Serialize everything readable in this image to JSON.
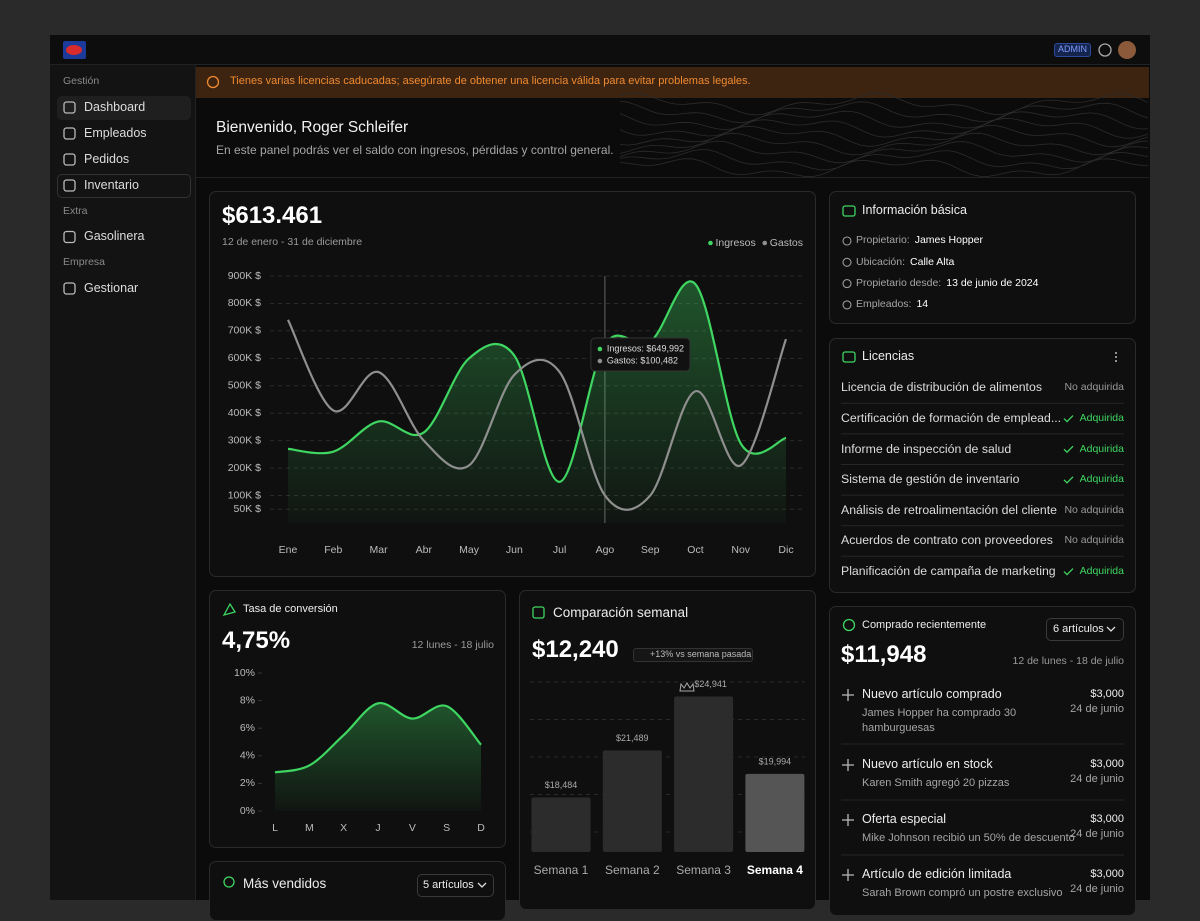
{
  "app": {
    "admin_badge": "ADMIN"
  },
  "sidebar": {
    "sections": [
      {
        "title": "Gestión",
        "items": [
          "Dashboard",
          "Empleados",
          "Pedidos",
          "Inventario"
        ]
      },
      {
        "title": "Extra",
        "items": [
          "Gasolinera"
        ]
      },
      {
        "title": "Empresa",
        "items": [
          "Gestionar"
        ]
      }
    ]
  },
  "banner": "Tienes varias licencias caducadas; asegúrate de obtener una licencia válida para evitar problemas legales.",
  "welcome": {
    "title": "Bienvenido, Roger Schleifer",
    "subtitle": "En este panel podrás ver el saldo con ingresos, pérdidas y control general."
  },
  "chart_data": [
    {
      "type": "line",
      "title": "$613.461",
      "subtitle": "12 de enero - 31 de diciembre",
      "categories": [
        "Ene",
        "Feb",
        "Mar",
        "Abr",
        "May",
        "Jun",
        "Jul",
        "Ago",
        "Sep",
        "Oct",
        "Nov",
        "Dic"
      ],
      "series": [
        {
          "name": "Ingresos",
          "color": "#3fd662",
          "area": true,
          "values": [
            270000,
            260000,
            370000,
            330000,
            600000,
            610000,
            150000,
            649992,
            660000,
            870000,
            290000,
            310000
          ]
        },
        {
          "name": "Gastos",
          "color": "#8f8f8f",
          "values": [
            740000,
            410000,
            550000,
            300000,
            210000,
            540000,
            550000,
            100482,
            100000,
            480000,
            210000,
            670000
          ]
        }
      ],
      "ylim": [
        0,
        900000
      ],
      "yticks": [
        {
          "value": 50000,
          "label": "50K $"
        },
        {
          "value": 100000,
          "label": "100K $"
        },
        {
          "value": 200000,
          "label": "200K $"
        },
        {
          "value": 300000,
          "label": "300K $"
        },
        {
          "value": 400000,
          "label": "400K $"
        },
        {
          "value": 500000,
          "label": "500K $"
        },
        {
          "value": 600000,
          "label": "600K $"
        },
        {
          "value": 700000,
          "label": "700K $"
        },
        {
          "value": 800000,
          "label": "800K $"
        },
        {
          "value": 900000,
          "label": "900K $"
        }
      ],
      "grid": true,
      "legend": "top-right",
      "annotations": [
        "Ingresos: $649,992",
        "Gastos: $100,482"
      ]
    },
    {
      "type": "line",
      "title": "Tasa de conversión",
      "headline": "4,75%",
      "subtitle": "12 lunes - 18 julio",
      "categories": [
        "L",
        "M",
        "X",
        "J",
        "V",
        "S",
        "D"
      ],
      "values": [
        2.8,
        3.3,
        5.5,
        7.8,
        6.7,
        7.6,
        4.8
      ],
      "color": "#3fd662",
      "area": true,
      "ylim": [
        0,
        10
      ],
      "yticks": [
        {
          "value": 0,
          "label": "0%"
        },
        {
          "value": 2,
          "label": "2%"
        },
        {
          "value": 4,
          "label": "4%"
        },
        {
          "value": 6,
          "label": "6%"
        },
        {
          "value": 8,
          "label": "8%"
        },
        {
          "value": 10,
          "label": "10%"
        }
      ],
      "grid": false
    },
    {
      "type": "bar",
      "title": "Comparación semanal",
      "headline": "$12,240",
      "badge": "+13% vs semana pasada",
      "categories": [
        "Semana 1",
        "Semana 2",
        "Semana 3",
        "Semana 4"
      ],
      "values": [
        18484,
        21489,
        24941,
        19994
      ],
      "value_labels": [
        "$18,484",
        "$21,489",
        "$24,941",
        "$19,994"
      ],
      "colors": [
        "#2c2c2c",
        "#2c2c2c",
        "#2c2c2c",
        "#555555"
      ],
      "ylim": [
        15000,
        26000
      ]
    }
  ],
  "info": {
    "title": "Información básica",
    "rows": [
      {
        "label": "Propietario:",
        "value": "James Hopper"
      },
      {
        "label": "Ubicación:",
        "value": "Calle Alta"
      },
      {
        "label": "Propietario desde:",
        "value": "13 de junio de 2024"
      },
      {
        "label": "Empleados:",
        "value": "14"
      }
    ]
  },
  "licenses": {
    "title": "Licencias",
    "rows": [
      {
        "name": "Licencia de distribución de alimentos",
        "status": "No adquirida"
      },
      {
        "name": "Certificación de formación de emplead...",
        "status": "Adquirida"
      },
      {
        "name": "Informe de inspección de salud",
        "status": "Adquirida"
      },
      {
        "name": "Sistema de gestión de inventario",
        "status": "Adquirida"
      },
      {
        "name": "Análisis de retroalimentación del cliente",
        "status": "No adquirida"
      },
      {
        "name": "Acuerdos de contrato con proveedores",
        "status": "No adquirida"
      },
      {
        "name": "Planificación de campaña de marketing",
        "status": "Adquirida"
      }
    ]
  },
  "recent": {
    "title": "Comprado recientemente",
    "dropdown": "6 artículos",
    "total": "$11,948",
    "period": "12 de lunes - 18 de julio",
    "items": [
      {
        "title": "Nuevo artículo comprado",
        "subtitle": "James Hopper ha comprado 30 hamburguesas",
        "amount": "$3,000",
        "date": "24 de junio"
      },
      {
        "title": "Nuevo artículo en stock",
        "subtitle": "Karen Smith agregó 20 pizzas",
        "amount": "$3,000",
        "date": "24 de junio"
      },
      {
        "title": "Oferta especial",
        "subtitle": "Mike Johnson recibió un 50% de descuento",
        "amount": "$3,000",
        "date": "24 de junio"
      },
      {
        "title": "Artículo de edición limitada",
        "subtitle": "Sarah Brown compró un postre exclusivo",
        "amount": "$3,000",
        "date": "24 de junio"
      }
    ]
  },
  "best": {
    "title": "Más vendidos",
    "dropdown": "5 artículos"
  }
}
